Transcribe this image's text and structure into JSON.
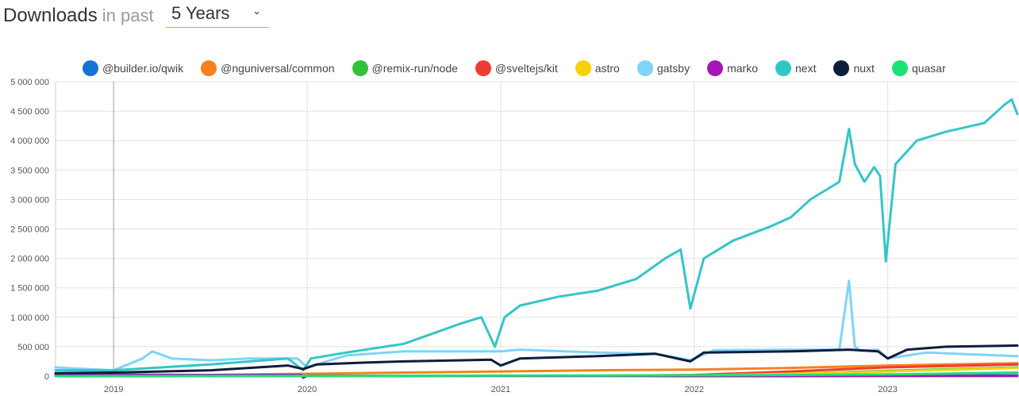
{
  "header": {
    "title": "Downloads",
    "subtitle": "in past",
    "period": "5 Years"
  },
  "colors": {
    "@builder.io/qwik": "#1473d6",
    "@nguniversal/common": "#f5821f",
    "@remix-run/node": "#33c13a",
    "@sveltejs/kit": "#f23b30",
    "astro": "#f7d20b",
    "gatsby": "#7fd4f7",
    "marko": "#a316b8",
    "next": "#34c6c6",
    "nuxt": "#0c1d3d",
    "quasar": "#19e374"
  },
  "chart_data": {
    "type": "line",
    "ylim": [
      0,
      5000000
    ],
    "y_ticks": [
      "0",
      "500 000",
      "1 000 000",
      "1 500 000",
      "2 000 000",
      "2 500 000",
      "3 000 000",
      "3 500 000",
      "4 000 000",
      "4 500 000",
      "5 000 000"
    ],
    "x_ticks": [
      "2019",
      "2020",
      "2021",
      "2022",
      "2023"
    ],
    "xlim": [
      2018.7,
      2023.67
    ],
    "grid": true,
    "legend_position": "top",
    "series": [
      {
        "name": "@builder.io/qwik",
        "x": [
          2018.7,
          2022.5,
          2023.0,
          2023.4,
          2023.67
        ],
        "values": [
          0,
          0,
          5000,
          12000,
          15000
        ]
      },
      {
        "name": "@nguniversal/common",
        "x": [
          2018.7,
          2019.5,
          2020.0,
          2020.5,
          2021.0,
          2021.5,
          2022.0,
          2022.5,
          2023.0,
          2023.67
        ],
        "values": [
          10000,
          20000,
          40000,
          60000,
          80000,
          100000,
          110000,
          140000,
          180000,
          220000
        ]
      },
      {
        "name": "@remix-run/node",
        "x": [
          2018.7,
          2021.8,
          2022.0,
          2022.5,
          2023.0,
          2023.67
        ],
        "values": [
          0,
          0,
          15000,
          40000,
          90000,
          150000
        ]
      },
      {
        "name": "@sveltejs/kit",
        "x": [
          2018.7,
          2021.0,
          2021.5,
          2022.0,
          2022.5,
          2023.0,
          2023.67
        ],
        "values": [
          0,
          0,
          5000,
          20000,
          80000,
          150000,
          200000
        ]
      },
      {
        "name": "astro",
        "x": [
          2018.7,
          2021.6,
          2022.0,
          2022.5,
          2023.0,
          2023.67
        ],
        "values": [
          0,
          0,
          10000,
          40000,
          80000,
          140000
        ]
      },
      {
        "name": "gatsby",
        "x": [
          2018.7,
          2018.8,
          2019.0,
          2019.15,
          2019.2,
          2019.3,
          2019.5,
          2019.7,
          2019.95,
          2020.0,
          2020.2,
          2020.5,
          2020.8,
          2021.0,
          2021.1,
          2021.5,
          2021.8,
          2021.98,
          2022.1,
          2022.5,
          2022.75,
          2022.8,
          2022.83,
          2022.86,
          2022.95,
          2023.0,
          2023.2,
          2023.67
        ],
        "values": [
          150000,
          130000,
          100000,
          300000,
          420000,
          300000,
          270000,
          300000,
          300000,
          150000,
          350000,
          420000,
          420000,
          420000,
          450000,
          400000,
          380000,
          270000,
          440000,
          450000,
          450000,
          1620000,
          500000,
          430000,
          450000,
          300000,
          400000,
          340000
        ]
      },
      {
        "name": "marko",
        "x": [
          2018.7,
          2019.5,
          2019.97,
          2019.98,
          2020.0,
          2020.5,
          2021.0,
          2023.67
        ],
        "values": [
          30000,
          20000,
          20000,
          -30000,
          10000,
          5000,
          5000,
          3000
        ]
      },
      {
        "name": "next",
        "x": [
          2018.7,
          2019.0,
          2019.5,
          2019.9,
          2019.98,
          2020.02,
          2020.2,
          2020.5,
          2020.8,
          2020.9,
          2020.97,
          2021.02,
          2021.1,
          2021.3,
          2021.5,
          2021.7,
          2021.85,
          2021.93,
          2021.98,
          2022.05,
          2022.2,
          2022.4,
          2022.5,
          2022.6,
          2022.75,
          2022.8,
          2022.83,
          2022.88,
          2022.93,
          2022.96,
          2022.99,
          2023.04,
          2023.15,
          2023.3,
          2023.5,
          2023.6,
          2023.64,
          2023.67
        ],
        "values": [
          100000,
          100000,
          200000,
          300000,
          100000,
          300000,
          400000,
          550000,
          900000,
          1000000,
          500000,
          1000000,
          1200000,
          1350000,
          1450000,
          1650000,
          2000000,
          2150000,
          1150000,
          2000000,
          2300000,
          2550000,
          2700000,
          3000000,
          3300000,
          4200000,
          3600000,
          3300000,
          3550000,
          3400000,
          1950000,
          3600000,
          4000000,
          4150000,
          4300000,
          4600000,
          4700000,
          4450000
        ]
      },
      {
        "name": "nuxt",
        "x": [
          2018.7,
          2019.0,
          2019.5,
          2019.9,
          2019.98,
          2020.05,
          2020.3,
          2020.5,
          2020.8,
          2020.95,
          2021.0,
          2021.1,
          2021.5,
          2021.8,
          2021.98,
          2022.05,
          2022.5,
          2022.8,
          2022.95,
          2023.0,
          2023.1,
          2023.3,
          2023.67
        ],
        "values": [
          50000,
          60000,
          100000,
          180000,
          120000,
          200000,
          230000,
          250000,
          270000,
          280000,
          180000,
          300000,
          340000,
          380000,
          250000,
          400000,
          420000,
          450000,
          420000,
          300000,
          450000,
          500000,
          520000
        ]
      },
      {
        "name": "quasar",
        "x": [
          2018.7,
          2020.0,
          2021.0,
          2022.0,
          2022.5,
          2023.0,
          2023.67
        ],
        "values": [
          0,
          5000,
          10000,
          15000,
          20000,
          30000,
          60000
        ]
      }
    ]
  }
}
